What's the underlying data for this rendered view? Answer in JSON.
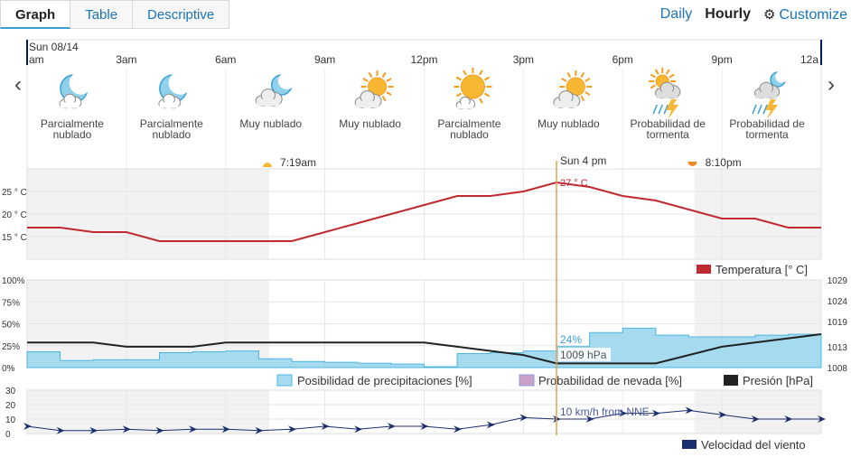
{
  "tabs": [
    "Graph",
    "Table",
    "Descriptive"
  ],
  "views": {
    "daily": "Daily",
    "hourly": "Hourly",
    "customize": "Customize"
  },
  "date_label": "Sun 08/14",
  "hour_labels": [
    "am",
    "3am",
    "6am",
    "9am",
    "12pm",
    "3pm",
    "6pm",
    "9pm",
    "12a"
  ],
  "periods": [
    {
      "icon": "moon-cloud-icon",
      "text": "Parcialmente nublado"
    },
    {
      "icon": "moon-cloud-icon",
      "text": "Parcialmente nublado"
    },
    {
      "icon": "cloudy-moon-icon",
      "text": "Muy nublado"
    },
    {
      "icon": "cloudy-sun-icon",
      "text": "Muy nublado"
    },
    {
      "icon": "partly-sunny-icon",
      "text": "Parcialmente nublado"
    },
    {
      "icon": "cloudy-sun-icon",
      "text": "Muy nublado"
    },
    {
      "icon": "thunderstorm-icon",
      "text": "Probabilidad de tormenta"
    },
    {
      "icon": "thunderstorm-night-icon",
      "text": "Probabilidad de tormenta"
    }
  ],
  "sunrise": "7:19am",
  "sunset": "8:10pm",
  "cursor": {
    "label": "Sun 4 pm",
    "temp": "27 ° C",
    "precip": "24%",
    "pressure": "1009 hPa",
    "wind": "10 km/h from NNE"
  },
  "legend": {
    "temperature": "Temperatura [° C]",
    "precip": "Posibilidad de precipitaciones [%]",
    "snow": "Probabilidad de nevada [%]",
    "pressure": "Presión [hPa]",
    "wind": "Velocidad del viento"
  },
  "colors": {
    "temperature": "#c0292f",
    "precip_fill": "#a6dbef",
    "precip_line": "#4cb5e0",
    "pressure": "#222222",
    "wind": "#1b2e6e",
    "accent": "#1a74b5",
    "cursor": "#e0a050"
  },
  "chart_data": [
    {
      "type": "line",
      "title": "Temperatura",
      "ylabel": "° C",
      "ylim": [
        10,
        30
      ],
      "y_ticks": [
        "25 ° C",
        "20 ° C",
        "15 ° C"
      ],
      "x_hours": [
        0,
        1,
        2,
        3,
        4,
        5,
        6,
        7,
        8,
        9,
        10,
        11,
        12,
        13,
        14,
        15,
        16,
        17,
        18,
        19,
        20,
        21,
        22,
        23,
        24
      ],
      "values": [
        17,
        17,
        16,
        16,
        14,
        14,
        14,
        14,
        14,
        16,
        18,
        20,
        22,
        24,
        24,
        25,
        27,
        26,
        24,
        23,
        21,
        19,
        19,
        17,
        17
      ]
    },
    {
      "type": "area",
      "title": "Posibilidad de precipitaciones [%]",
      "ylim": [
        0,
        100
      ],
      "y_ticks": [
        "100%",
        "75%",
        "50%",
        "25%",
        "0%"
      ],
      "x_hours": [
        0,
        1,
        2,
        3,
        4,
        5,
        6,
        7,
        8,
        9,
        10,
        11,
        12,
        13,
        14,
        15,
        16,
        17,
        18,
        19,
        20,
        21,
        22,
        23,
        24
      ],
      "values": [
        18,
        8,
        9,
        9,
        17,
        18,
        19,
        10,
        7,
        6,
        5,
        4,
        1,
        16,
        17,
        19,
        24,
        40,
        45,
        37,
        35,
        35,
        37,
        38,
        38
      ]
    },
    {
      "type": "line",
      "title": "Presión [hPa]",
      "ylim": [
        1008,
        1029
      ],
      "y_ticks": [
        "1029",
        "1024",
        "1019",
        "1013",
        "1008"
      ],
      "x_hours": [
        0,
        2,
        3,
        4,
        5,
        6,
        7,
        8,
        9,
        10,
        11,
        12,
        13,
        14,
        15,
        16,
        17,
        18,
        19,
        20,
        21,
        22,
        23,
        24
      ],
      "values": [
        1014,
        1014,
        1013,
        1013,
        1013,
        1014,
        1014,
        1014,
        1014,
        1014,
        1014,
        1014,
        1013,
        1012,
        1011,
        1009,
        1009,
        1009,
        1009,
        1011,
        1013,
        1014,
        1015,
        1016
      ]
    },
    {
      "type": "line",
      "title": "Velocidad del viento",
      "ylim": [
        0,
        30
      ],
      "y_ticks": [
        "30",
        "20",
        "10",
        "0"
      ],
      "x_hours": [
        0,
        1,
        2,
        3,
        4,
        5,
        6,
        7,
        8,
        9,
        10,
        11,
        12,
        13,
        14,
        15,
        16,
        17,
        18,
        19,
        20,
        21,
        22,
        23,
        24
      ],
      "values": [
        5,
        2,
        2,
        3,
        2,
        3,
        3,
        2,
        3,
        5,
        3,
        5,
        5,
        3,
        6,
        11,
        10,
        10,
        14,
        14,
        16,
        13,
        10,
        10,
        10
      ]
    }
  ]
}
